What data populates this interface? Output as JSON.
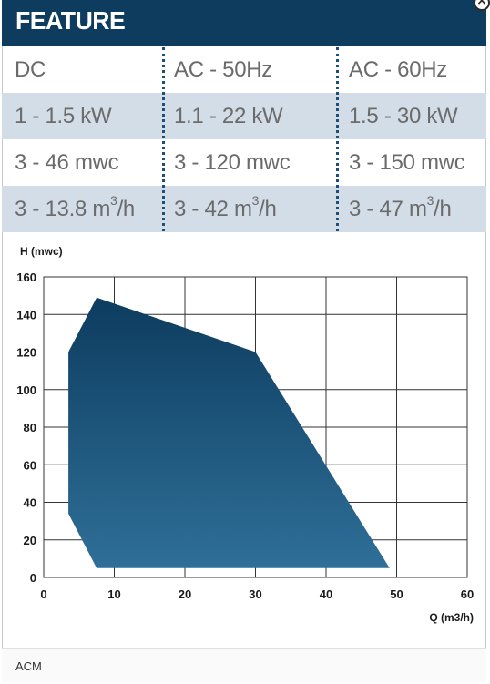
{
  "header": {
    "title": "FEATURE"
  },
  "close_icon": "close-icon",
  "table": {
    "rows": [
      {
        "cells": [
          "DC",
          "AC - 50Hz",
          "AC - 60Hz"
        ],
        "shaded": false
      },
      {
        "cells": [
          "1 - 1.5 kW",
          "1.1 - 22 kW",
          "1.5 - 30 kW"
        ],
        "shaded": true
      },
      {
        "cells": [
          "3 - 46 mwc",
          "3 - 120 mwc",
          "3 - 150 mwc"
        ],
        "shaded": false
      },
      {
        "cells": [
          "3 - 13.8 m³/h",
          "3 - 42 m³/h",
          "3 - 47 m³/h"
        ],
        "shaded": true
      }
    ]
  },
  "chart_data": {
    "type": "area",
    "ylabel": "H (mwc)",
    "xlabel": "Q (m3/h)",
    "xlim": [
      0,
      60
    ],
    "ylim": [
      0,
      160
    ],
    "x_ticks": [
      0,
      10,
      20,
      30,
      40,
      50,
      60
    ],
    "y_ticks": [
      0,
      20,
      40,
      60,
      80,
      100,
      120,
      140,
      160
    ],
    "grid": true,
    "series": [
      {
        "points": [
          [
            3.5,
            120
          ],
          [
            7.5,
            149
          ],
          [
            30,
            120
          ],
          [
            49,
            5
          ],
          [
            7.5,
            5
          ],
          [
            3.5,
            34
          ]
        ],
        "color_top": "#0d3c5f",
        "color_bottom": "#2f6f98"
      }
    ]
  },
  "footer": {
    "text": "ACM"
  },
  "colors": {
    "header": "#0d3c5f",
    "shaded_row": "#d3dde8",
    "divider": "#1d4f78"
  }
}
